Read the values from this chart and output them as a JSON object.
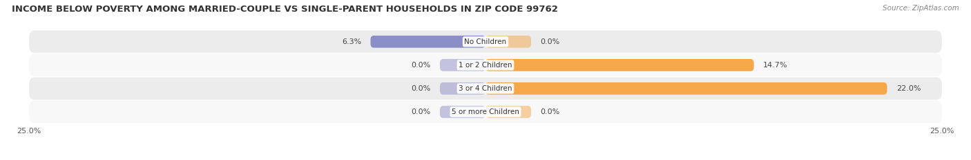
{
  "title": "INCOME BELOW POVERTY AMONG MARRIED-COUPLE VS SINGLE-PARENT HOUSEHOLDS IN ZIP CODE 99762",
  "source": "Source: ZipAtlas.com",
  "categories": [
    "No Children",
    "1 or 2 Children",
    "3 or 4 Children",
    "5 or more Children"
  ],
  "married_values": [
    6.3,
    0.0,
    0.0,
    0.0
  ],
  "single_values": [
    0.0,
    14.7,
    22.0,
    0.0
  ],
  "married_labels": [
    "6.3%",
    "0.0%",
    "0.0%",
    "0.0%"
  ],
  "single_labels": [
    "0.0%",
    "14.7%",
    "22.0%",
    "0.0%"
  ],
  "married_color": "#8B8FC8",
  "single_color": "#F5A84A",
  "xlim": 25.0,
  "bar_height": 0.52,
  "background_color": "#ffffff",
  "row_bg_odd": "#ececec",
  "row_bg_even": "#f8f8f8",
  "title_fontsize": 9.5,
  "source_fontsize": 7.5,
  "label_fontsize": 8,
  "category_fontsize": 7.5,
  "axis_label_fontsize": 8,
  "legend_fontsize": 8
}
